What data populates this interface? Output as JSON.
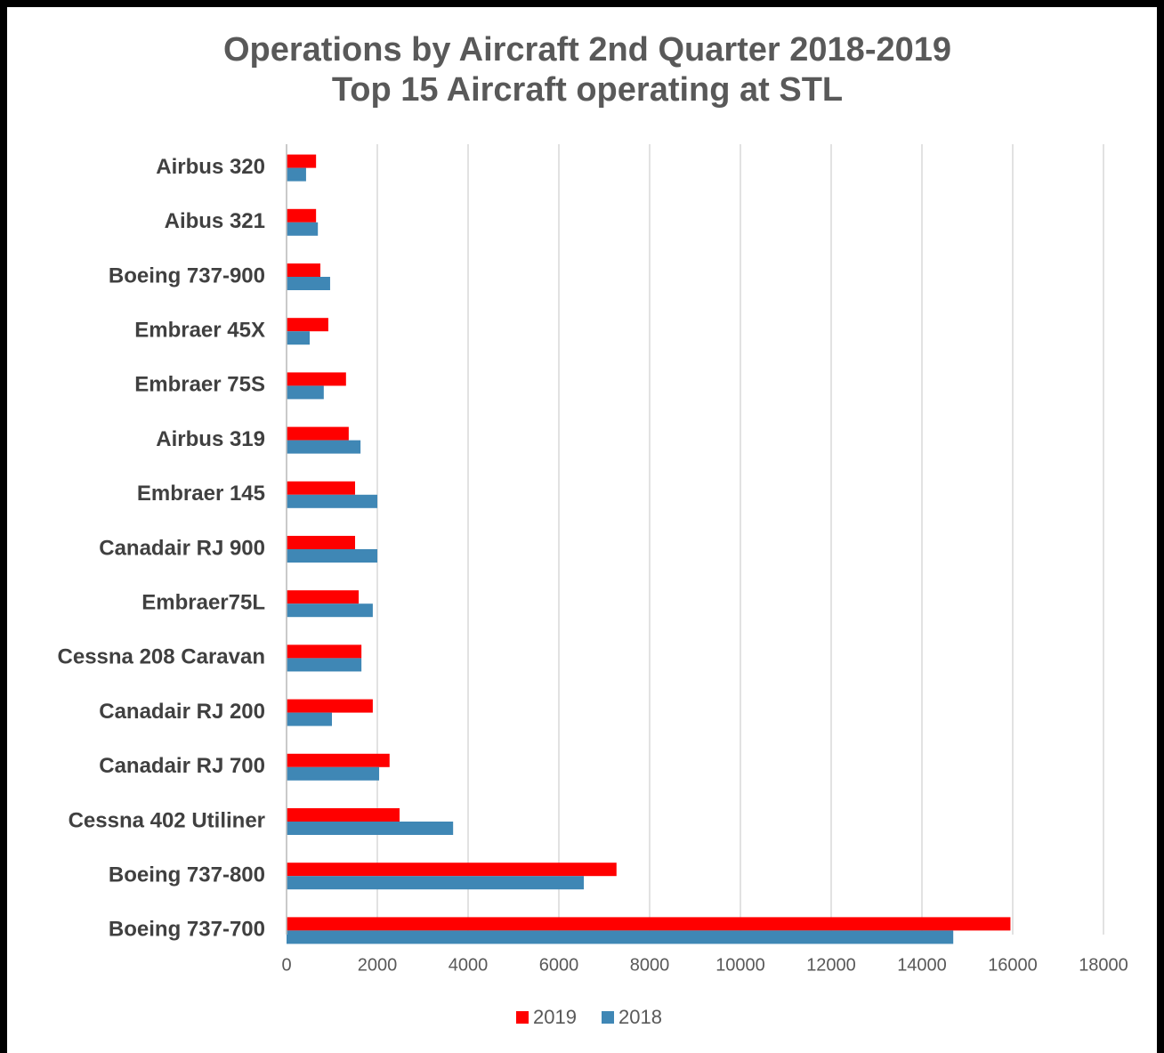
{
  "chart_data": {
    "type": "hbar",
    "title": [
      "Operations by Aircraft  2nd Quarter 2018-2019",
      "Top 15 Aircraft operating at STL"
    ],
    "categories": [
      "Airbus 320",
      "Aibus 321",
      "Boeing 737-900",
      "Embraer 45X",
      "Embraer 75S",
      "Airbus 319",
      "Embraer 145",
      "Canadair RJ 900",
      "Embraer75L",
      "Cessna 208 Caravan",
      "Canadair RJ 200",
      "Canadair RJ 700",
      "Cessna 402 Utiliner",
      "Boeing 737-800",
      "Boeing 737-700"
    ],
    "series": [
      {
        "name": "2019",
        "color": "#ff0000",
        "values": [
          650,
          650,
          745,
          920,
          1310,
          1370,
          1510,
          1510,
          1590,
          1650,
          1900,
          2270,
          2490,
          7270,
          15950
        ]
      },
      {
        "name": "2018",
        "color": "#3f87b5",
        "values": [
          430,
          690,
          960,
          510,
          820,
          1630,
          2000,
          2000,
          1900,
          1650,
          1000,
          2040,
          3670,
          6550,
          14690
        ]
      }
    ],
    "xlim": [
      0,
      18000
    ],
    "xticks": [
      0,
      2000,
      4000,
      6000,
      8000,
      10000,
      12000,
      14000,
      16000,
      18000
    ],
    "grid": true,
    "legend": "bottom"
  }
}
